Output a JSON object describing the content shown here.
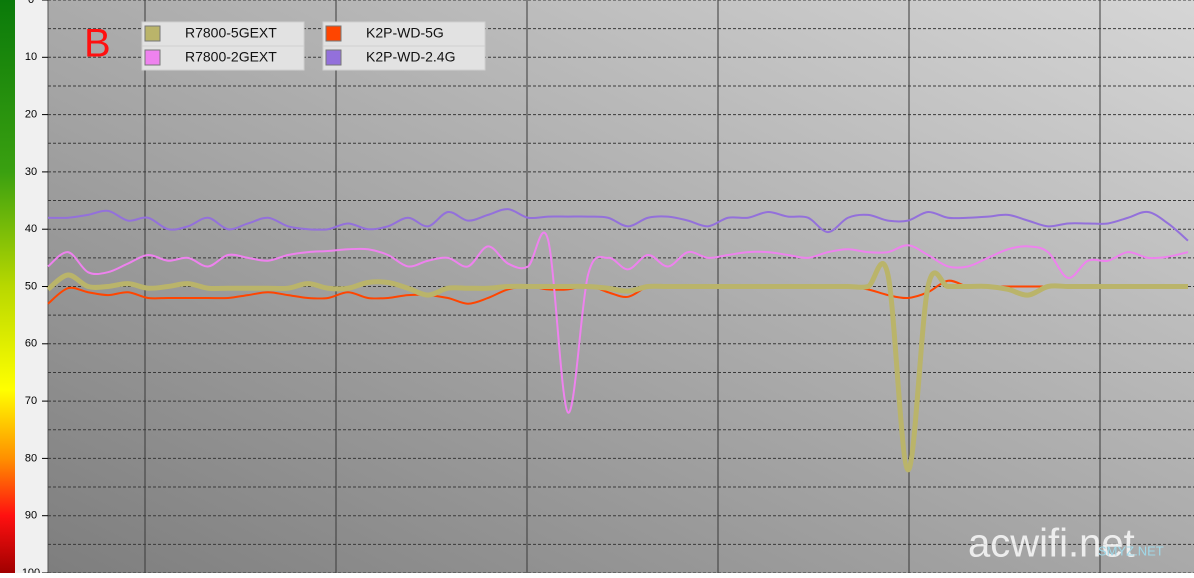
{
  "chart_data": {
    "type": "line",
    "annotations": [
      "B",
      "acwifi.net",
      "SMYZ.NET"
    ],
    "ylim": [
      0,
      100
    ],
    "y_inverted": true,
    "yticks": [
      0,
      10,
      20,
      30,
      40,
      50,
      60,
      70,
      80,
      90,
      100
    ],
    "grid": true,
    "series": [
      {
        "name": "R7800-5GEXT",
        "color": "#bab46a",
        "values": [
          50.5,
          48,
          50,
          50,
          49.5,
          50.3,
          50,
          49.5,
          50.3,
          50.3,
          50.3,
          50.3,
          50.3,
          49.5,
          50.3,
          50.3,
          49.3,
          49.3,
          50.3,
          51.5,
          50.3,
          50.3,
          50.3,
          50,
          50,
          50,
          50,
          50,
          50.3,
          50.8,
          50,
          50,
          50,
          50,
          50,
          50,
          50,
          50,
          50,
          50,
          50,
          50,
          48,
          82,
          50,
          50,
          50,
          50,
          50.5,
          51.5,
          50,
          50,
          50,
          50,
          50,
          50,
          50,
          50
        ]
      },
      {
        "name": "R7800-2GEXT",
        "color": "#ee82ee",
        "values": [
          46.5,
          44,
          47.5,
          47.5,
          46,
          44.5,
          45.5,
          45,
          46.5,
          44.5,
          45,
          45.5,
          44.5,
          44,
          43.8,
          43.5,
          43.5,
          44.5,
          46.5,
          45.5,
          45,
          46.5,
          43,
          46,
          46.5,
          41.8,
          72,
          48,
          45,
          47,
          44.5,
          46.5,
          44,
          45,
          44.5,
          44,
          44,
          44.5,
          45,
          44,
          43.5,
          44,
          44,
          42.8,
          44.5,
          46.5,
          46.5,
          45,
          43.5,
          43,
          44,
          48.5,
          45.5,
          45.5,
          44,
          45,
          44.8,
          44
        ]
      },
      {
        "name": "K2P-WD-5G",
        "color": "#ff4500",
        "values": [
          53,
          50.3,
          51,
          51.5,
          51,
          52,
          52,
          52,
          52,
          52,
          51.5,
          51,
          51.5,
          52,
          52,
          51,
          52,
          52,
          51.5,
          51.5,
          52,
          53,
          52,
          50.5,
          50,
          50.5,
          50.5,
          49.8,
          51,
          51.8,
          50,
          50,
          50,
          50,
          50,
          50,
          50,
          50,
          50,
          50,
          50,
          50.5,
          51.5,
          52,
          51,
          49,
          50,
          50,
          50,
          50,
          50,
          50,
          50,
          50,
          50,
          50,
          50,
          50
        ]
      },
      {
        "name": "K2P-WD-2.4G",
        "color": "#9370db",
        "values": [
          38,
          38,
          37.5,
          36.8,
          38.5,
          38,
          40,
          39.5,
          38,
          40,
          39,
          38,
          39.5,
          40,
          40,
          39,
          40,
          39.5,
          38,
          39.5,
          37,
          38.5,
          37.5,
          36.5,
          38,
          37.8,
          37.8,
          37.8,
          38,
          39.5,
          38,
          37.8,
          38.5,
          39.5,
          38,
          38,
          37,
          37.8,
          38,
          40.5,
          38,
          37.5,
          38.5,
          38.5,
          37,
          38,
          38,
          37.8,
          37.5,
          38.5,
          39.5,
          39,
          39,
          39,
          38,
          37,
          39,
          42
        ]
      }
    ]
  }
}
